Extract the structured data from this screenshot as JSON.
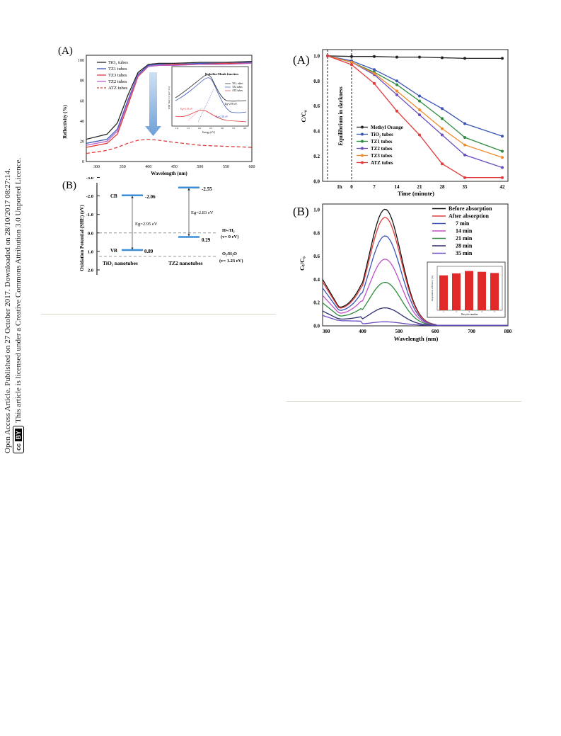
{
  "sidebar": {
    "line1": "Open Access Article. Published on 27 October 2017. Downloaded on 28/10/2017 08:27:14.",
    "line2": "This article is licensed under a Creative Commons Attribution 3.0 Unported Licence.",
    "cc_badge": "cc",
    "by_badge": "BY"
  },
  "fig_left": {
    "panel_a": {
      "label": "(A)",
      "ylabel": "Reflectivity (%)",
      "xlabel": "Wavelength (nm)",
      "xticks": [
        "300",
        "350",
        "400",
        "450",
        "500",
        "550",
        "600"
      ],
      "yticks": [
        "0",
        "20",
        "40",
        "60",
        "80",
        "100"
      ],
      "legend": [
        "TiO₂ tubes",
        "TZ1 tubes",
        "TZ3 tubes",
        "TZ2 tubes",
        "ATZ tubes"
      ],
      "inset": {
        "title": "Kubelka-Munk function",
        "legend": [
          "TiO₂ tubes",
          "TZ2 tubes",
          "ATZ tubes"
        ],
        "xlabel": "Energy (eV)",
        "ylabel": "(F(R)·hν)^1/2 (eV^1/2)",
        "ann1": "Eg=2.95 eV",
        "ann2": "Eg=2.83 eV",
        "ann3": "Eg=2.35 eV",
        "xticks": [
          "1.0",
          "1.5",
          "2.0",
          "2.5",
          "3.0",
          "3.5",
          "4.0"
        ]
      }
    },
    "panel_b": {
      "label": "(B)",
      "ylabel": "Oxidation Potential (SHE) (eV)",
      "yticks": [
        "-3.0",
        "-2.0",
        "-1.0",
        "0.0",
        "1.0",
        "2.0"
      ],
      "cb": "CB",
      "vb": "VB",
      "tio2_cb": "-2.06",
      "tio2_vb": "0.89",
      "tio2_eg": "Eg=2.95 eV",
      "tz2_cb": "-2.55",
      "tz2_vb": "0.29",
      "tz2_eg": "Eg=2.83 eV",
      "h_label": "H+/H₂",
      "h_val": "(v= 0 eV)",
      "o_label": "O₂/H₂O",
      "o_val": "(v= 1.23 eV)",
      "tio2_name": "TiO₂ nanotubes",
      "tz2_name": "TZ2 nanotubes"
    }
  },
  "fig_right": {
    "panel_a": {
      "label": "(A)",
      "ylabel": "C/C₀",
      "xlabel": "Time (minute)",
      "dark_label": "Equilibrium in darkness",
      "xticks": [
        "1h",
        "0",
        "7",
        "14",
        "21",
        "28",
        "35",
        "42"
      ],
      "yticks": [
        "0.0",
        "0.2",
        "0.4",
        "0.6",
        "0.8",
        "1.0"
      ],
      "legend": [
        "Methyl Orange",
        "TiO₂ tubes",
        "TZ1 tubes",
        "TZ2 tubes",
        "TZ3 tubes",
        "ATZ tubes"
      ]
    },
    "panel_b": {
      "label": "(B)",
      "ylabel": "Cₜ/C₀",
      "xlabel": "Wavelength (nm)",
      "xticks": [
        "300",
        "400",
        "500",
        "600",
        "700",
        "800"
      ],
      "yticks": [
        "0.0",
        "0.2",
        "0.4",
        "0.6",
        "0.8",
        "1.0"
      ],
      "legend": [
        "Before absorption",
        "After absorption",
        "7 min",
        "14 min",
        "21 min",
        "28 min",
        "35 min"
      ],
      "inset": {
        "xlabel": "Recycle number",
        "ylabel": "Degradation efficiency (%)"
      }
    }
  },
  "chart_data": [
    {
      "type": "line",
      "xlabel": "Wavelength (nm)",
      "ylabel": "Reflectivity (%)",
      "xlim": [
        280,
        600
      ],
      "ylim": [
        0,
        105
      ],
      "x": [
        280,
        320,
        340,
        360,
        380,
        400,
        420,
        450,
        500,
        550,
        600
      ],
      "series": [
        {
          "name": "TiO₂ tubes",
          "color": "#222222",
          "values": [
            22,
            27,
            38,
            65,
            88,
            96,
            97,
            97,
            98,
            98,
            99
          ]
        },
        {
          "name": "TZ1 tubes",
          "color": "#3a55b5",
          "values": [
            18,
            22,
            32,
            60,
            86,
            95,
            96,
            96,
            97,
            97,
            98
          ]
        },
        {
          "name": "TZ3 tubes",
          "color": "#e23a3a",
          "values": [
            14,
            18,
            27,
            55,
            84,
            94,
            95,
            96,
            96,
            97,
            97
          ]
        },
        {
          "name": "TZ2 tubes",
          "color": "#b660c8",
          "values": [
            16,
            20,
            30,
            58,
            85,
            94,
            95,
            95,
            96,
            96,
            97
          ]
        },
        {
          "name": "ATZ tubes",
          "color": "#e23a3a",
          "values": [
            8,
            11,
            14,
            18,
            21,
            22,
            21,
            19,
            16,
            15,
            14
          ]
        }
      ]
    },
    {
      "type": "line",
      "xlabel": "Time (minute)",
      "ylabel": "C/C₀",
      "categories": [
        "-60",
        "0",
        "7",
        "14",
        "21",
        "28",
        "35",
        "42"
      ],
      "ylim": [
        0,
        1.05
      ],
      "series": [
        {
          "name": "Methyl Orange",
          "color": "#222222",
          "values": [
            1.0,
            0.995,
            0.995,
            0.99,
            0.99,
            0.985,
            0.98,
            0.98
          ]
        },
        {
          "name": "TiO₂ tubes",
          "color": "#3a55b5",
          "values": [
            1.0,
            0.96,
            0.89,
            0.8,
            0.68,
            0.58,
            0.46,
            0.36
          ]
        },
        {
          "name": "TZ1 tubes",
          "color": "#2e8b3e",
          "values": [
            1.0,
            0.95,
            0.87,
            0.77,
            0.64,
            0.5,
            0.35,
            0.24
          ]
        },
        {
          "name": "TZ2 tubes",
          "color": "#6a4cc0",
          "values": [
            1.0,
            0.95,
            0.85,
            0.69,
            0.53,
            0.37,
            0.21,
            0.11
          ]
        },
        {
          "name": "TZ3 tubes",
          "color": "#f08a2a",
          "values": [
            1.0,
            0.95,
            0.86,
            0.72,
            0.57,
            0.42,
            0.29,
            0.19
          ]
        },
        {
          "name": "ATZ tubes",
          "color": "#e23a3a",
          "values": [
            1.0,
            0.93,
            0.78,
            0.56,
            0.37,
            0.14,
            0.03,
            0.03
          ]
        }
      ]
    },
    {
      "type": "line",
      "xlabel": "Wavelength (nm)",
      "ylabel": "Cₜ/C₀",
      "xlim": [
        290,
        800
      ],
      "ylim": [
        0,
        1.05
      ],
      "series": [
        {
          "name": "Before absorption",
          "color": "#111111",
          "peak": 1.0
        },
        {
          "name": "After absorption",
          "color": "#e23a3a",
          "peak": 0.93
        },
        {
          "name": "7 min",
          "color": "#3a55b5",
          "peak": 0.77
        },
        {
          "name": "14 min",
          "color": "#c050c8",
          "peak": 0.57
        },
        {
          "name": "21 min",
          "color": "#2e8b3e",
          "peak": 0.37
        },
        {
          "name": "28 min",
          "color": "#2c2c6e",
          "peak": 0.15
        },
        {
          "name": "35 min",
          "color": "#6a4cc0",
          "peak": 0.03
        }
      ]
    },
    {
      "type": "bar",
      "xlabel": "Recycle number",
      "ylabel": "Degradation efficiency (%)",
      "categories": [
        "1",
        "2",
        "3",
        "4",
        "5"
      ],
      "values": [
        88,
        93,
        99,
        97,
        94
      ],
      "color": "#e02a2a"
    }
  ]
}
